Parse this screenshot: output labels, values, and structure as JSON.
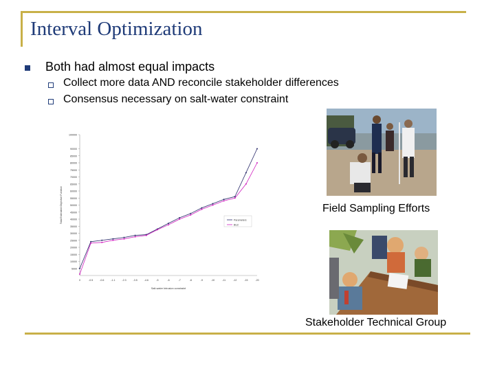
{
  "slide": {
    "title": "Interval Optimization",
    "bullet": "Both had almost equal impacts",
    "sub_bullets": [
      "Collect more data AND reconcile stakeholder differences",
      "Consensus necessary on salt-water constraint"
    ],
    "photo_caption": "Field Sampling Efforts",
    "clip_caption": "Stakeholder Technical Group",
    "accent_color": "#c8b048",
    "title_color": "#1f3b78"
  },
  "chart_data": {
    "type": "line",
    "title": "",
    "xlabel": "Salt-water Intrusion constraint",
    "ylabel": "Total Estimated Objective Function",
    "categories": [
      "0",
      "-0.5",
      "-0.6",
      "-1.1",
      "-2.3",
      "-3.5",
      "-4.6",
      "-5",
      "-6",
      "-7",
      "-8",
      "-9",
      "-10",
      "-11",
      "-12",
      "-15",
      "-20"
    ],
    "ylim": [
      0,
      100000
    ],
    "yticks": [
      5000,
      10000,
      15000,
      20000,
      25000,
      30000,
      35000,
      40000,
      45000,
      50000,
      55000,
      60000,
      65000,
      70000,
      75000,
      80000,
      85000,
      90000,
      100000
    ],
    "series": [
      {
        "name": "Parameters",
        "color": "#2a2a6a",
        "values": [
          5000,
          24000,
          25000,
          26000,
          27000,
          28500,
          29000,
          33000,
          37000,
          41000,
          44000,
          48000,
          51000,
          54000,
          56000,
          73000,
          90000
        ]
      },
      {
        "name": "BU2",
        "color": "#d020c0",
        "values": [
          1000,
          23000,
          23500,
          25000,
          26000,
          27500,
          28500,
          32500,
          36000,
          40000,
          43000,
          47000,
          50000,
          53000,
          55000,
          65000,
          80000
        ]
      }
    ],
    "legend": "right",
    "grid": false
  }
}
